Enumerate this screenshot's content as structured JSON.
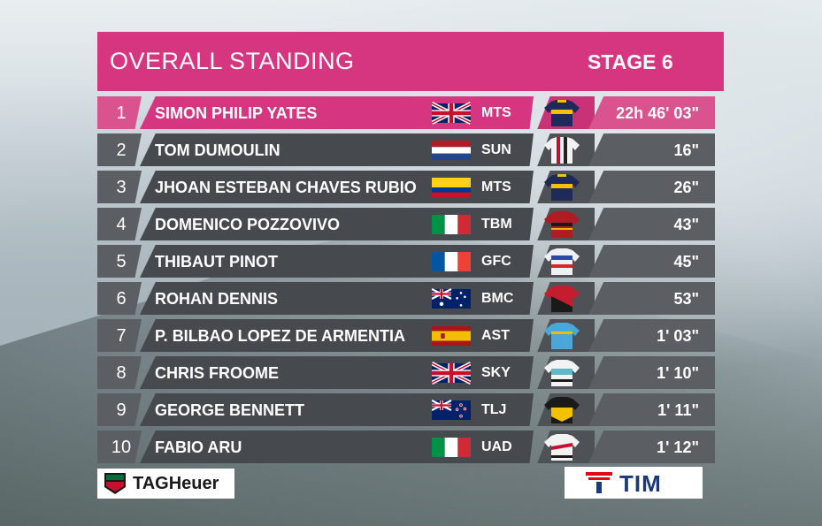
{
  "header": {
    "title": "OVERALL STANDING",
    "stage": "STAGE 6"
  },
  "colors": {
    "accent": "#d6357f",
    "row_dark": "#46494d",
    "row_light": "#5b5e62"
  },
  "standings": [
    {
      "pos": "1",
      "name": "SIMON PHILIP YATES",
      "team": "MTS",
      "time": "22h 46' 03\"",
      "flag": "gb"
    },
    {
      "pos": "2",
      "name": "TOM DUMOULIN",
      "team": "SUN",
      "time": "16\"",
      "flag": "nl"
    },
    {
      "pos": "3",
      "name": "JHOAN ESTEBAN CHAVES RUBIO",
      "team": "MTS",
      "time": "26\"",
      "flag": "co"
    },
    {
      "pos": "4",
      "name": "DOMENICO POZZOVIVO",
      "team": "TBM",
      "time": "43\"",
      "flag": "it"
    },
    {
      "pos": "5",
      "name": "THIBAUT PINOT",
      "team": "GFC",
      "time": "45\"",
      "flag": "fr"
    },
    {
      "pos": "6",
      "name": "ROHAN DENNIS",
      "team": "BMC",
      "time": "53\"",
      "flag": "au"
    },
    {
      "pos": "7",
      "name": "P. BILBAO LOPEZ DE ARMENTIA",
      "team": "AST",
      "time": "1' 03\"",
      "flag": "es"
    },
    {
      "pos": "8",
      "name": "CHRIS FROOME",
      "team": "SKY",
      "time": "1' 10\"",
      "flag": "gb"
    },
    {
      "pos": "9",
      "name": "GEORGE BENNETT",
      "team": "TLJ",
      "time": "1' 11\"",
      "flag": "nz"
    },
    {
      "pos": "10",
      "name": "FABIO ARU",
      "team": "UAD",
      "time": "1' 12\"",
      "flag": "it"
    }
  ],
  "sponsors": {
    "left": "TAGHeuer",
    "right": "TIM"
  }
}
